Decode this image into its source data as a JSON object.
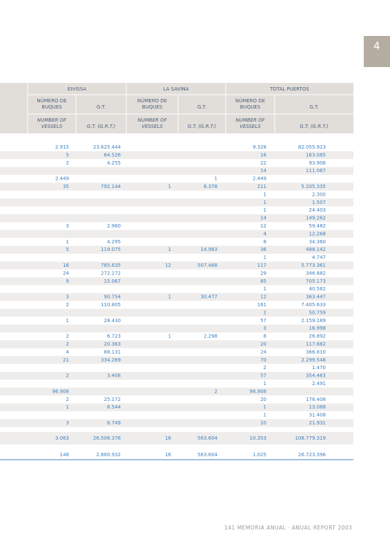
{
  "tab": "4",
  "table": {
    "groups": [
      "EIVISSA",
      "LA SAVINA",
      "TOTAL PUERTOS"
    ],
    "count_es": [
      "NÚMERO DE",
      "BUQUES"
    ],
    "gt_es": "G.T.",
    "count_en": [
      "NUMBER OF",
      "VESSELS"
    ],
    "gt_en": "G.T. (G.R.T.)",
    "rows": [
      [
        "2.915",
        "23.625.444",
        null,
        null,
        "9.328",
        "82.055.923"
      ],
      [
        "5",
        "64.526",
        null,
        null,
        "16",
        "163.085"
      ],
      [
        "2",
        "4.255",
        null,
        null,
        "22",
        "93.906"
      ],
      [
        null,
        null,
        null,
        null,
        "14",
        "111.067"
      ],
      [
        "2.449",
        null,
        null,
        "1",
        "2.449",
        null
      ],
      [
        "35",
        "792.144",
        "1",
        "8.378",
        "211",
        "5.205.335"
      ],
      [
        null,
        null,
        null,
        null,
        "1",
        "2.300"
      ],
      [
        null,
        null,
        null,
        null,
        "1",
        "1.507"
      ],
      [
        null,
        null,
        null,
        null,
        "1",
        "24.403"
      ],
      [
        null,
        null,
        null,
        null,
        "14",
        "149.262"
      ],
      [
        "3",
        "2.960",
        null,
        null,
        "12",
        "59.482"
      ],
      [
        null,
        null,
        null,
        null,
        "4",
        "12.268"
      ],
      [
        "1",
        "4.295",
        null,
        null,
        "8",
        "34.360"
      ],
      [
        "5",
        "119.075",
        "1",
        "14.983",
        "36",
        "488.142"
      ],
      [
        null,
        null,
        null,
        null,
        "1",
        "4.747"
      ],
      [
        "18",
        "785.635",
        "12",
        "507.468",
        "117",
        "5.773.361"
      ],
      [
        "24",
        "272.272",
        null,
        null,
        "29",
        "346.882"
      ],
      [
        "9",
        "15.067",
        null,
        null,
        "85",
        "705.173"
      ],
      [
        null,
        null,
        null,
        null,
        "1",
        "40.562"
      ],
      [
        "3",
        "90.754",
        "1",
        "30.477",
        "12",
        "363.447"
      ],
      [
        "2",
        "110.805",
        null,
        null,
        "161",
        "7.405.633"
      ],
      [
        null,
        null,
        null,
        null,
        "2",
        "50.759"
      ],
      [
        "1",
        "28.430",
        null,
        null,
        "57",
        "2.159.189"
      ],
      [
        null,
        null,
        null,
        null,
        "3",
        "16.998"
      ],
      [
        "2",
        "6.723",
        "1",
        "2.298",
        "8",
        "26.892"
      ],
      [
        "2",
        "20.363",
        null,
        null,
        "20",
        "117.682"
      ],
      [
        "4",
        "88.131",
        null,
        null,
        "24",
        "366.810"
      ],
      [
        "21",
        "334.269",
        null,
        null,
        "70",
        "2.299.548"
      ],
      [
        null,
        null,
        null,
        null,
        "2",
        "1.470"
      ],
      [
        "2",
        "3.406",
        null,
        null,
        "57",
        "354.463"
      ],
      [
        null,
        null,
        null,
        null,
        "1",
        "2.491"
      ],
      [
        "96.908",
        null,
        null,
        "2",
        "96.908",
        null
      ],
      [
        "2",
        "25.172",
        null,
        null,
        "20",
        "176.408"
      ],
      [
        "1",
        "6.544",
        null,
        null,
        "1",
        "13.088"
      ],
      [
        null,
        null,
        null,
        null,
        "1",
        "31.408"
      ],
      [
        "3",
        "6.749",
        null,
        null,
        "10",
        "21.931"
      ]
    ],
    "totals": [
      [
        "3.063",
        "26.506.376",
        "16",
        "563.604",
        "10.353",
        "108.779.319"
      ],
      [
        "148",
        "2.880.932",
        "16",
        "563.604",
        "1.025",
        "26.723.396"
      ]
    ]
  },
  "footer": "141 MEMORIA ANUAL · ANUAL REPORT 2003"
}
